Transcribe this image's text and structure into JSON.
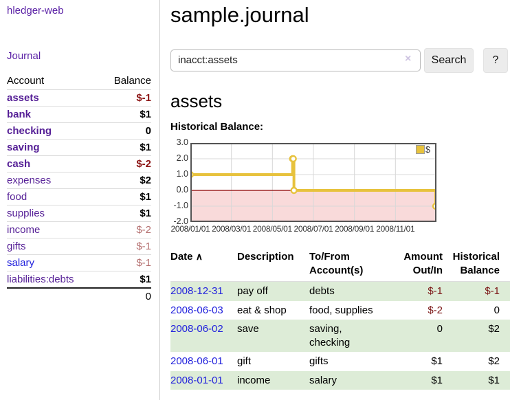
{
  "app_title": "hledger-web",
  "sidebar": {
    "journal_link": "Journal",
    "account_header": "Account",
    "balance_header": "Balance",
    "rows": [
      {
        "account": "assets",
        "balance": "$-1"
      },
      {
        "account": "bank",
        "balance": "$1"
      },
      {
        "account": "checking",
        "balance": "0"
      },
      {
        "account": "saving",
        "balance": "$1"
      },
      {
        "account": "cash",
        "balance": "$-2"
      },
      {
        "account": "expenses",
        "balance": "$2"
      },
      {
        "account": "food",
        "balance": "$1"
      },
      {
        "account": "supplies",
        "balance": "$1"
      },
      {
        "account": "income",
        "balance": "$-2"
      },
      {
        "account": "gifts",
        "balance": "$-1"
      },
      {
        "account": "salary",
        "balance": "$-1"
      },
      {
        "account": "liabilities:debts",
        "balance": "$1"
      }
    ],
    "total": "0"
  },
  "header": {
    "title": "sample.journal"
  },
  "search": {
    "value": "inacct:assets",
    "clear_icon": "×",
    "search_button": "Search",
    "help_button": "?"
  },
  "account_page": {
    "heading": "assets",
    "chart_title": "Historical Balance:"
  },
  "chart_data": {
    "type": "line",
    "step": true,
    "title": "Historical Balance",
    "series": [
      {
        "name": "$",
        "points": [
          [
            "2008-01-01",
            1
          ],
          [
            "2008-06-01",
            2
          ],
          [
            "2008-06-02",
            2
          ],
          [
            "2008-06-03",
            0
          ],
          [
            "2008-12-31",
            -1
          ]
        ]
      }
    ],
    "x_range": [
      "2008-01-01",
      "2009-01-01"
    ],
    "ylim": [
      -2,
      3
    ],
    "y_tick_labels": [
      "3.0",
      "2.0",
      "1.0",
      "0.0",
      "-1.0",
      "-2.0"
    ],
    "x_tick_labels": [
      "2008/01/01",
      "2008/03/01",
      "2008/05/01",
      "2008/07/01",
      "2008/09/01",
      "2008/11/01"
    ],
    "legend": {
      "label": "$",
      "position": "top-right"
    },
    "colors": {
      "line": "#e7c23d",
      "marker_fill": "#ffffff",
      "negative_region": "#f9dada",
      "zero_line": "#8b0000",
      "grid": "#d8d8d8",
      "border": "#545454"
    }
  },
  "register": {
    "headers": {
      "date": "Date",
      "sort_indicator": "∧",
      "description": "Description",
      "account": "To/From Account(s)",
      "amount": "Amount Out/In",
      "balance": "Historical Balance"
    },
    "rows": [
      {
        "date": "2008-12-31",
        "description": "pay off",
        "accounts": "debts",
        "amount": "$-1",
        "balance": "$-1"
      },
      {
        "date": "2008-06-03",
        "description": "eat & shop",
        "accounts": "food, supplies",
        "amount": "$-2",
        "balance": "0"
      },
      {
        "date": "2008-06-02",
        "description": "save",
        "accounts": "saving, checking",
        "amount": "0",
        "balance": "$2"
      },
      {
        "date": "2008-06-01",
        "description": "gift",
        "accounts": "gifts",
        "amount": "$1",
        "balance": "$2"
      },
      {
        "date": "2008-01-01",
        "description": "income",
        "accounts": "salary",
        "amount": "$1",
        "balance": "$1"
      }
    ]
  }
}
